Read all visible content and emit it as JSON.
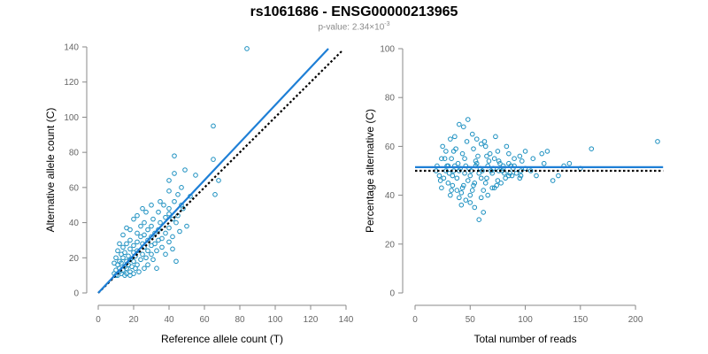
{
  "title": "rs1061686 - ENSG00000213965",
  "subtitle": {
    "prefix": "p-value: 2.34×10",
    "exponent": "-3"
  },
  "colors": {
    "points": "#1a8fc0",
    "fit_line": "#1e7fd6",
    "reference_line": "#000000",
    "axis": "#888888",
    "tick_label": "#666666"
  },
  "chart_data": [
    {
      "type": "scatter",
      "xlabel": "Reference allele count (T)",
      "ylabel": "Alternative allele count (C)",
      "xlim": [
        0,
        140
      ],
      "ylim": [
        0,
        140
      ],
      "xticks": [
        0,
        20,
        40,
        60,
        80,
        100,
        120,
        140
      ],
      "yticks": [
        0,
        20,
        40,
        60,
        80,
        100,
        120,
        140
      ],
      "fit_line": {
        "style": "solid",
        "x": [
          0,
          130
        ],
        "y": [
          0,
          139
        ]
      },
      "reference_line": {
        "style": "dotted",
        "x": [
          0,
          138
        ],
        "y": [
          0,
          138
        ]
      },
      "points": [
        [
          84,
          139
        ],
        [
          65,
          95
        ],
        [
          43,
          78
        ],
        [
          65,
          76
        ],
        [
          49,
          70
        ],
        [
          43,
          68
        ],
        [
          55,
          67
        ],
        [
          68,
          64
        ],
        [
          40,
          64
        ],
        [
          47,
          60
        ],
        [
          40,
          58
        ],
        [
          45,
          56
        ],
        [
          66,
          56
        ],
        [
          52,
          55
        ],
        [
          35,
          52
        ],
        [
          43,
          52
        ],
        [
          47,
          50
        ],
        [
          37,
          50
        ],
        [
          30,
          50
        ],
        [
          25,
          48
        ],
        [
          40,
          48
        ],
        [
          48,
          48
        ],
        [
          27,
          46
        ],
        [
          34,
          46
        ],
        [
          40,
          45
        ],
        [
          45,
          44
        ],
        [
          22,
          44
        ],
        [
          38,
          43
        ],
        [
          42,
          42
        ],
        [
          31,
          42
        ],
        [
          20,
          42
        ],
        [
          35,
          40
        ],
        [
          44,
          40
        ],
        [
          26,
          40
        ],
        [
          24,
          38
        ],
        [
          50,
          38
        ],
        [
          30,
          38
        ],
        [
          40,
          37
        ],
        [
          16,
          37
        ],
        [
          18,
          36
        ],
        [
          28,
          36
        ],
        [
          34,
          36
        ],
        [
          46,
          35
        ],
        [
          22,
          34
        ],
        [
          32,
          34
        ],
        [
          38,
          34
        ],
        [
          26,
          33
        ],
        [
          14,
          33
        ],
        [
          42,
          32
        ],
        [
          24,
          32
        ],
        [
          30,
          32
        ],
        [
          36,
          31
        ],
        [
          18,
          30
        ],
        [
          28,
          30
        ],
        [
          34,
          30
        ],
        [
          40,
          29
        ],
        [
          22,
          29
        ],
        [
          25,
          28
        ],
        [
          32,
          28
        ],
        [
          12,
          28
        ],
        [
          16,
          28
        ],
        [
          20,
          27
        ],
        [
          30,
          27
        ],
        [
          36,
          26
        ],
        [
          26,
          26
        ],
        [
          14,
          26
        ],
        [
          42,
          25
        ],
        [
          18,
          25
        ],
        [
          22,
          24
        ],
        [
          28,
          24
        ],
        [
          33,
          24
        ],
        [
          11,
          24
        ],
        [
          15,
          23
        ],
        [
          20,
          23
        ],
        [
          25,
          22
        ],
        [
          30,
          22
        ],
        [
          38,
          22
        ],
        [
          13,
          22
        ],
        [
          17,
          21
        ],
        [
          21,
          21
        ],
        [
          27,
          20
        ],
        [
          10,
          20
        ],
        [
          14,
          20
        ],
        [
          18,
          19
        ],
        [
          24,
          19
        ],
        [
          31,
          19
        ],
        [
          12,
          18
        ],
        [
          16,
          18
        ],
        [
          20,
          18
        ],
        [
          44,
          18
        ],
        [
          9,
          17
        ],
        [
          13,
          17
        ],
        [
          17,
          16
        ],
        [
          22,
          16
        ],
        [
          28,
          16
        ],
        [
          11,
          16
        ],
        [
          15,
          15
        ],
        [
          19,
          15
        ],
        [
          12,
          14
        ],
        [
          16,
          14
        ],
        [
          21,
          14
        ],
        [
          26,
          14
        ],
        [
          33,
          14
        ],
        [
          10,
          13
        ],
        [
          14,
          13
        ],
        [
          18,
          12
        ],
        [
          23,
          12
        ],
        [
          12,
          12
        ],
        [
          9,
          11
        ],
        [
          13,
          11
        ],
        [
          16,
          11
        ],
        [
          20,
          11
        ],
        [
          11,
          10
        ],
        [
          15,
          10
        ],
        [
          18,
          10
        ],
        [
          10,
          10
        ]
      ]
    },
    {
      "type": "scatter",
      "xlabel": "Total number of reads",
      "ylabel": "Percentage alternative (C)",
      "xlim": [
        0,
        220
      ],
      "ylim": [
        0,
        100
      ],
      "xticks": [
        0,
        50,
        100,
        150,
        200
      ],
      "yticks": [
        0,
        20,
        40,
        60,
        80,
        100
      ],
      "fit_line": {
        "style": "solid",
        "y": 51.5,
        "x": [
          0,
          225
        ]
      },
      "reference_line": {
        "style": "dotted",
        "y": 50,
        "x": [
          0,
          225
        ]
      },
      "points": [
        [
          220,
          62
        ],
        [
          160,
          59
        ],
        [
          120,
          58
        ],
        [
          115,
          57
        ],
        [
          100,
          58
        ],
        [
          95,
          56
        ],
        [
          90,
          55
        ],
        [
          85,
          53
        ],
        [
          80,
          52
        ],
        [
          76,
          54
        ],
        [
          72,
          55
        ],
        [
          68,
          57
        ],
        [
          64,
          60
        ],
        [
          60,
          61
        ],
        [
          56,
          63
        ],
        [
          52,
          65
        ],
        [
          48,
          71
        ],
        [
          44,
          68
        ],
        [
          40,
          69
        ],
        [
          36,
          64
        ],
        [
          32,
          63
        ],
        [
          28,
          58
        ],
        [
          24,
          55
        ],
        [
          20,
          52
        ],
        [
          22,
          48
        ],
        [
          26,
          47
        ],
        [
          30,
          45
        ],
        [
          34,
          44
        ],
        [
          38,
          42
        ],
        [
          42,
          41
        ],
        [
          46,
          38
        ],
        [
          50,
          37
        ],
        [
          54,
          35
        ],
        [
          58,
          30
        ],
        [
          62,
          33
        ],
        [
          66,
          40
        ],
        [
          70,
          43
        ],
        [
          74,
          44
        ],
        [
          78,
          45
        ],
        [
          82,
          47
        ],
        [
          88,
          48
        ],
        [
          92,
          49
        ],
        [
          96,
          50
        ],
        [
          105,
          50
        ],
        [
          110,
          48
        ],
        [
          125,
          46
        ],
        [
          140,
          53
        ],
        [
          130,
          48
        ],
        [
          55,
          52
        ],
        [
          45,
          55
        ],
        [
          35,
          58
        ],
        [
          25,
          60
        ],
        [
          30,
          52
        ],
        [
          40,
          50
        ],
        [
          50,
          48
        ],
        [
          60,
          47
        ],
        [
          70,
          49
        ],
        [
          80,
          51
        ],
        [
          90,
          52
        ],
        [
          100,
          51
        ],
        [
          65,
          56
        ],
        [
          75,
          58
        ],
        [
          85,
          57
        ],
        [
          58,
          49
        ],
        [
          48,
          46
        ],
        [
          38,
          47
        ],
        [
          28,
          50
        ],
        [
          33,
          55
        ],
        [
          43,
          57
        ],
        [
          53,
          59
        ],
        [
          63,
          62
        ],
        [
          73,
          64
        ],
        [
          83,
          60
        ],
        [
          52,
          42
        ],
        [
          62,
          42
        ],
        [
          72,
          43
        ],
        [
          42,
          36
        ],
        [
          32,
          40
        ],
        [
          36,
          52
        ],
        [
          46,
          52
        ],
        [
          56,
          53
        ],
        [
          66,
          52
        ],
        [
          76,
          50
        ],
        [
          86,
          49
        ],
        [
          96,
          48
        ],
        [
          54,
          45
        ],
        [
          64,
          45
        ],
        [
          44,
          44
        ],
        [
          34,
          48
        ],
        [
          24,
          43
        ],
        [
          27,
          55
        ],
        [
          37,
          59
        ],
        [
          47,
          62
        ],
        [
          57,
          56
        ],
        [
          67,
          54
        ],
        [
          77,
          53
        ],
        [
          87,
          52
        ],
        [
          97,
          54
        ],
        [
          107,
          55
        ],
        [
          117,
          53
        ],
        [
          135,
          52
        ],
        [
          150,
          51
        ],
        [
          49,
          51
        ],
        [
          59,
          51
        ],
        [
          69,
          50
        ],
        [
          79,
          50
        ],
        [
          89,
          51
        ],
        [
          39,
          53
        ],
        [
          29,
          52
        ],
        [
          19,
          50
        ],
        [
          23,
          46
        ],
        [
          31,
          49
        ],
        [
          41,
          51
        ],
        [
          51,
          50
        ],
        [
          61,
          50
        ],
        [
          71,
          51
        ],
        [
          81,
          49
        ],
        [
          45,
          49
        ],
        [
          35,
          50
        ],
        [
          55,
          54
        ],
        [
          65,
          47
        ],
        [
          75,
          46
        ],
        [
          85,
          48
        ],
        [
          95,
          47
        ],
        [
          50,
          40
        ],
        [
          60,
          39
        ],
        [
          40,
          39
        ],
        [
          33,
          42
        ],
        [
          43,
          43
        ],
        [
          53,
          44
        ]
      ]
    }
  ]
}
